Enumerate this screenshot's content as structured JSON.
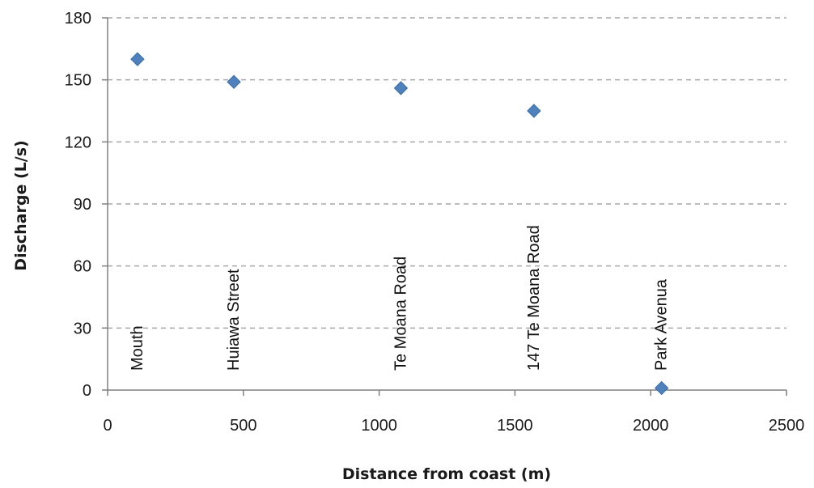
{
  "chart_data": {
    "type": "scatter",
    "title": "",
    "xlabel": "Distance from coast (m)",
    "ylabel": "Discharge (L/s)",
    "xlim": [
      0,
      2500
    ],
    "ylim": [
      0,
      180
    ],
    "xticks": [
      "0",
      "500",
      "1000",
      "1500",
      "2000",
      "2500"
    ],
    "yticks": [
      "0",
      "30",
      "60",
      "90",
      "120",
      "150",
      "180"
    ],
    "grid": "horizontal-dashed",
    "legend": "none",
    "marker": "diamond",
    "marker_color": "#4f81bd",
    "points": [
      {
        "x": 110,
        "y": 160
      },
      {
        "x": 465,
        "y": 149
      },
      {
        "x": 1080,
        "y": 146
      },
      {
        "x": 1570,
        "y": 135
      },
      {
        "x": 2040,
        "y": 1
      }
    ],
    "annotations": [
      {
        "text": "Mouth",
        "x": 110
      },
      {
        "text": "Huiawa Street",
        "x": 465
      },
      {
        "text": "Te Moana Road",
        "x": 1080
      },
      {
        "text": "147 Te Moana Road",
        "x": 1570
      },
      {
        "text": "Park Avenua",
        "x": 2040
      }
    ]
  }
}
